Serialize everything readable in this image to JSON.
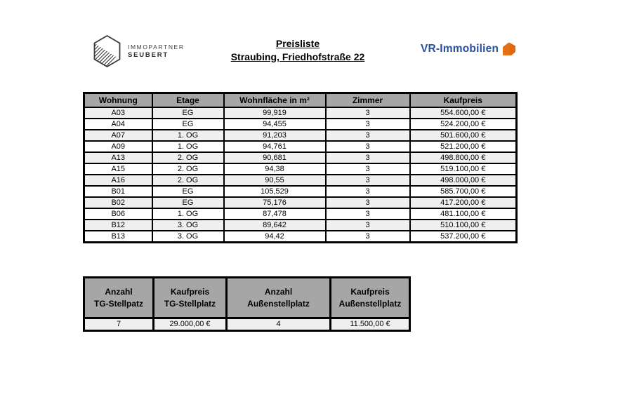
{
  "header": {
    "left_logo": {
      "line1": "IMMOPARTNER",
      "line2": "SEUBERT"
    },
    "title": {
      "line1": "Preisliste",
      "line2": "Straubing, Friedhofstraße 22"
    },
    "right_logo": {
      "text": "VR-Immobilien"
    }
  },
  "price_table": {
    "columns": [
      "Wohnung",
      "Etage",
      "Wohnfläche in m²",
      "Zimmer",
      "Kaufpreis"
    ],
    "rows": [
      [
        "A03",
        "EG",
        "99,919",
        "3",
        "554.600,00 €"
      ],
      [
        "A04",
        "EG",
        "94,455",
        "3",
        "524.200,00 €"
      ],
      [
        "A07",
        "1. OG",
        "91,203",
        "3",
        "501.600,00 €"
      ],
      [
        "A09",
        "1. OG",
        "94,761",
        "3",
        "521.200,00 €"
      ],
      [
        "A13",
        "2. OG",
        "90,681",
        "3",
        "498.800,00 €"
      ],
      [
        "A15",
        "2. OG",
        "94,38",
        "3",
        "519.100,00 €"
      ],
      [
        "A16",
        "2. OG",
        "90,55",
        "3",
        "498.000,00 €"
      ],
      [
        "B01",
        "EG",
        "105,529",
        "3",
        "585.700,00 €"
      ],
      [
        "B02",
        "EG",
        "75,176",
        "3",
        "417.200,00 €"
      ],
      [
        "B06",
        "1. OG",
        "87,478",
        "3",
        "481.100,00 €"
      ],
      [
        "B12",
        "3. OG",
        "89,642",
        "3",
        "510.100,00 €"
      ],
      [
        "B13",
        "3. OG",
        "94,42",
        "3",
        "537.200,00 €"
      ]
    ]
  },
  "parking_table": {
    "columns": [
      [
        "Anzahl",
        "TG-Stellpatz"
      ],
      [
        "Kaufpreis",
        "TG-Stellplatz"
      ],
      [
        "Anzahl",
        "Außenstellplatz"
      ],
      [
        "Kaufpreis",
        "Außenstellplatz"
      ]
    ],
    "values": [
      "7",
      "29.000,00 €",
      "4",
      "11.500,00 €"
    ]
  },
  "colors": {
    "table_header_bg": "#a6a6a6",
    "row_alt_bg": "#efefef",
    "table_border": "#000000",
    "vr_blue": "#27509e",
    "vr_orange": "#e2670f",
    "logo_gray": "#3c3c3c"
  }
}
